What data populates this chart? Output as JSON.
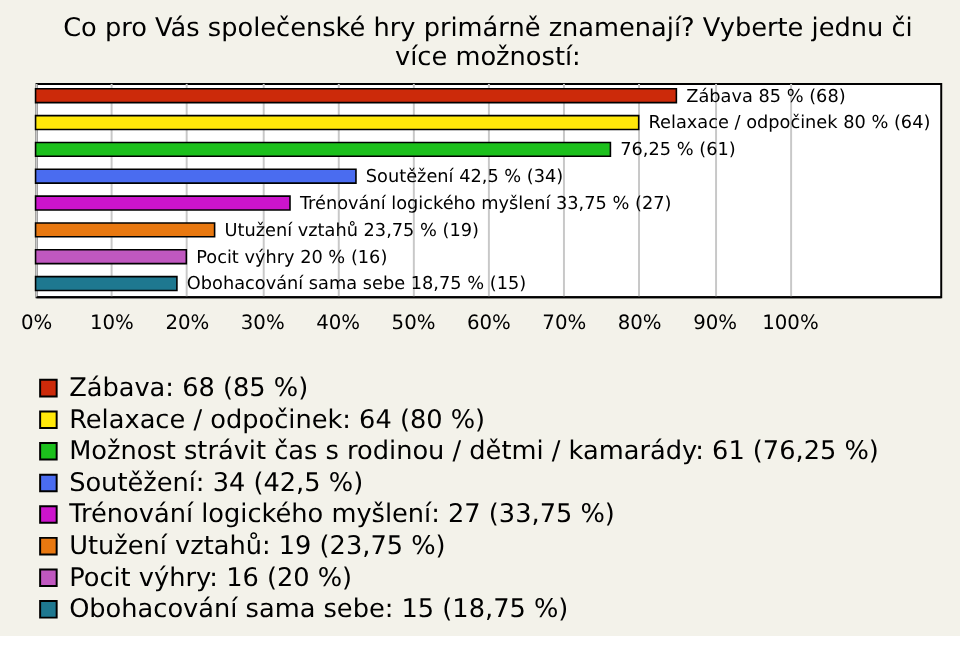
{
  "chart_data": {
    "type": "bar",
    "orientation": "horizontal",
    "title": "Co pro Vás společenské hry primárně znamenají? Vyberte jednu či více možností:",
    "categories": [
      null,
      null,
      null,
      null,
      null,
      null,
      null,
      null
    ],
    "series": [
      {
        "name": "Zábava: 68 (85 %)",
        "color": "#cc2a0a",
        "values": [
          85,
          null,
          null,
          null,
          null,
          null,
          null,
          null
        ],
        "value_labels": [
          "Zábava 85 % (68)",
          null,
          null,
          null,
          null,
          null,
          null,
          null
        ]
      },
      {
        "name": "Relaxace / odpočinek: 64 (80 %)",
        "color": "#ffe80a",
        "values": [
          null,
          80,
          null,
          null,
          null,
          null,
          null,
          null
        ],
        "value_labels": [
          null,
          "Relaxace / odpočinek 80 % (64)",
          null,
          null,
          null,
          null,
          null,
          null
        ]
      },
      {
        "name": "Možnost strávit čas s rodinou / dětmi / kamarády: 61 (76,25 %)",
        "color": "#1cc01c",
        "values": [
          null,
          null,
          76.25,
          null,
          null,
          null,
          null,
          null
        ],
        "value_labels": [
          null,
          null,
          "76,25 % (61)",
          null,
          null,
          null,
          null,
          null
        ]
      },
      {
        "name": "Soutěžení: 34 (42,5 %)",
        "color": "#4a6cf0",
        "values": [
          null,
          null,
          null,
          42.5,
          null,
          null,
          null,
          null
        ],
        "value_labels": [
          null,
          null,
          null,
          "Soutěžení 42,5 % (34)",
          null,
          null,
          null,
          null
        ]
      },
      {
        "name": "Trénování logického myšlení: 27 (33,75 %)",
        "color": "#cc14cc",
        "values": [
          null,
          null,
          null,
          null,
          33.75,
          null,
          null,
          null
        ],
        "value_labels": [
          null,
          null,
          null,
          null,
          "Trénování logického myšlení 33,75 % (27)",
          null,
          null,
          null
        ]
      },
      {
        "name": "Utužení vztahů: 19 (23,75 %)",
        "color": "#e87810",
        "values": [
          null,
          null,
          null,
          null,
          null,
          23.75,
          null,
          null
        ],
        "value_labels": [
          null,
          null,
          null,
          null,
          null,
          "Utužení vztahů 23,75 % (19)",
          null,
          null
        ]
      },
      {
        "name": "Pocit výhry: 16 (20 %)",
        "color": "#c058c0",
        "values": [
          null,
          null,
          null,
          null,
          null,
          null,
          20,
          null
        ],
        "value_labels": [
          null,
          null,
          null,
          null,
          null,
          null,
          "Pocit výhry 20 % (16)",
          null
        ]
      },
      {
        "name": "Obohacování sama sebe: 15 (18,75 %)",
        "color": "#1e7890",
        "values": [
          null,
          null,
          null,
          null,
          null,
          null,
          null,
          18.75
        ],
        "value_labels": [
          null,
          null,
          null,
          null,
          null,
          null,
          null,
          "Obohacování sama sebe 18,75 % (15)"
        ]
      }
    ],
    "xlim": [
      0,
      120
    ],
    "xticks": [
      {
        "value": 0,
        "label": "0%"
      },
      {
        "value": 10,
        "label": "10%"
      },
      {
        "value": 20,
        "label": "20%"
      },
      {
        "value": 30,
        "label": "30%"
      },
      {
        "value": 40,
        "label": "40%"
      },
      {
        "value": 50,
        "label": "50%"
      },
      {
        "value": 60,
        "label": "60%"
      },
      {
        "value": 70,
        "label": "70%"
      },
      {
        "value": 80,
        "label": "80%"
      },
      {
        "value": 90,
        "label": "90%"
      },
      {
        "value": 100,
        "label": "100%"
      }
    ],
    "grid": "x",
    "legend": "bottom",
    "tick_labels": "x"
  }
}
